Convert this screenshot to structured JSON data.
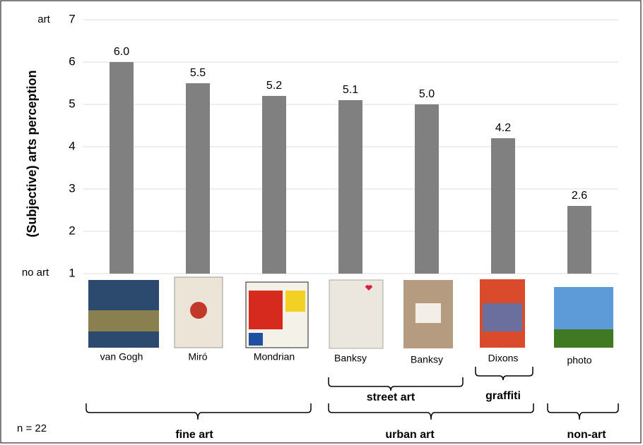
{
  "chart_data": {
    "type": "bar",
    "y_label": "(Subjective) arts perception",
    "y_end_labels": [
      "no art",
      "art"
    ],
    "categories": [
      "van Gogh",
      "Miró",
      "Mondrian",
      "Banksy",
      "Banksy",
      "Dixons",
      "photo"
    ],
    "values": [
      6.0,
      5.5,
      5.2,
      5.1,
      5.0,
      4.2,
      2.6
    ],
    "value_labels": [
      "6.0",
      "5.5",
      "5.2",
      "5.1",
      "5.0",
      "4.2",
      "2.6"
    ],
    "color": "#808080",
    "ylim": [
      1,
      7
    ],
    "yticks": [
      1,
      2,
      3,
      4,
      5,
      6,
      7
    ],
    "grid": true,
    "groups": [
      "street art",
      "graffiti",
      "fine art",
      "urban art",
      "non-art"
    ],
    "note": "n = 22"
  }
}
